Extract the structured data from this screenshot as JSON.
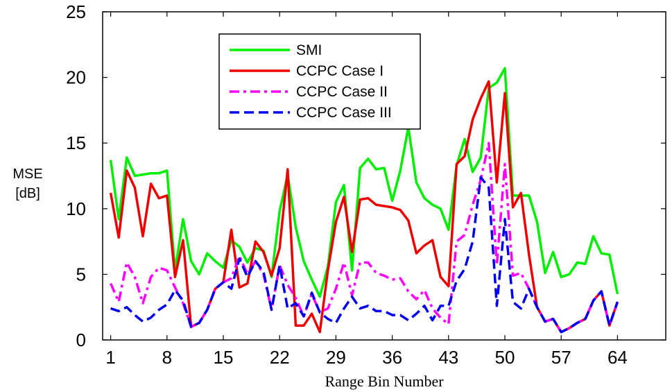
{
  "chart_data": {
    "type": "line",
    "title": "",
    "xlabel": "Range Bin Number",
    "ylabel_lines": [
      "MSE",
      "[dB]"
    ],
    "xlim": [
      0,
      70
    ],
    "ylim": [
      0,
      25
    ],
    "x_ticks": [
      1,
      8,
      15,
      22,
      29,
      36,
      43,
      50,
      57,
      64
    ],
    "y_ticks": [
      0,
      5,
      10,
      15,
      20,
      25
    ],
    "grid": false,
    "legend_position": "top-center",
    "x": [
      1,
      2,
      3,
      4,
      5,
      6,
      7,
      8,
      9,
      10,
      11,
      12,
      13,
      14,
      15,
      16,
      17,
      18,
      19,
      20,
      21,
      22,
      23,
      24,
      25,
      26,
      27,
      28,
      29,
      30,
      31,
      32,
      33,
      34,
      35,
      36,
      37,
      38,
      39,
      40,
      41,
      42,
      43,
      44,
      45,
      46,
      47,
      48,
      49,
      50,
      51,
      52,
      53,
      54,
      55,
      56,
      57,
      58,
      59,
      60,
      61,
      62,
      63,
      64
    ],
    "series": [
      {
        "name": "SMI",
        "color": "#00ee00",
        "dash": "solid",
        "values": [
          13.7,
          9.2,
          13.9,
          12.5,
          12.6,
          12.7,
          12.7,
          12.9,
          5.3,
          9.2,
          6.0,
          5.0,
          6.6,
          6.0,
          5.5,
          7.6,
          7.1,
          5.9,
          7.0,
          6.8,
          4.8,
          9.8,
          12.6,
          8.6,
          6.0,
          4.6,
          3.3,
          5.6,
          10.5,
          11.8,
          5.3,
          13.1,
          13.8,
          13.0,
          13.1,
          10.6,
          12.9,
          16.2,
          12.0,
          10.8,
          10.3,
          10.0,
          8.4,
          13.3,
          15.3,
          12.8,
          13.9,
          19.2,
          19.6,
          20.7,
          11.0,
          11.0,
          11.0,
          9.0,
          5.1,
          6.7,
          4.8,
          5.0,
          5.9,
          5.8,
          7.9,
          6.6,
          6.5,
          3.5
        ]
      },
      {
        "name": "CCPC Case I",
        "color": "#ee0000",
        "dash": "solid",
        "values": [
          11.2,
          7.8,
          12.9,
          11.6,
          7.9,
          11.9,
          10.8,
          11.0,
          4.8,
          7.6,
          1.0,
          1.3,
          2.3,
          3.9,
          4.4,
          8.4,
          4.0,
          4.3,
          7.5,
          6.7,
          4.9,
          7.0,
          13.0,
          1.1,
          1.1,
          2.0,
          0.6,
          5.3,
          9.0,
          10.9,
          6.7,
          10.7,
          10.8,
          10.3,
          10.2,
          10.1,
          9.9,
          9.1,
          6.6,
          7.2,
          7.6,
          4.8,
          4.1,
          13.4,
          14.0,
          16.8,
          18.4,
          19.7,
          12.0,
          18.8,
          10.1,
          11.2,
          6.5,
          2.5,
          1.4,
          1.6,
          0.6,
          0.9,
          1.3,
          1.6,
          3.0,
          3.7,
          1.1,
          2.9
        ]
      },
      {
        "name": "CCPC Case II",
        "color": "#ff00ff",
        "dash": "dashdot",
        "values": [
          4.3,
          2.9,
          5.9,
          4.8,
          2.8,
          4.8,
          5.5,
          5.3,
          4.0,
          2.8,
          1.0,
          1.3,
          2.3,
          3.9,
          4.4,
          4.7,
          6.4,
          5.0,
          6.0,
          5.0,
          2.3,
          5.7,
          4.2,
          3.2,
          1.8,
          3.5,
          2.1,
          2.4,
          3.9,
          5.9,
          3.4,
          5.9,
          5.9,
          5.1,
          4.9,
          4.6,
          4.7,
          3.7,
          3.1,
          3.8,
          2.4,
          1.7,
          1.2,
          7.5,
          8.0,
          10.3,
          12.2,
          15.0,
          5.7,
          13.4,
          4.9,
          5.1,
          3.9,
          2.5,
          1.4,
          1.6,
          0.6,
          0.9,
          1.3,
          1.6,
          3.0,
          3.7,
          1.1,
          2.9
        ]
      },
      {
        "name": "CCPC Case III",
        "color": "#0000ee",
        "dash": "dashed",
        "values": [
          2.4,
          2.2,
          2.5,
          1.9,
          1.4,
          1.7,
          2.3,
          2.7,
          3.8,
          3.0,
          1.0,
          1.3,
          2.3,
          3.9,
          4.4,
          3.9,
          6.2,
          4.8,
          6.0,
          5.2,
          2.3,
          5.7,
          2.4,
          2.8,
          1.8,
          3.6,
          2.1,
          1.6,
          1.3,
          2.4,
          3.3,
          2.4,
          2.6,
          2.2,
          2.2,
          1.9,
          1.9,
          1.5,
          2.0,
          2.6,
          1.5,
          2.6,
          2.6,
          4.5,
          5.4,
          7.5,
          12.4,
          11.6,
          2.6,
          9.2,
          2.9,
          2.4,
          3.9,
          2.5,
          1.4,
          1.6,
          0.6,
          0.9,
          1.3,
          1.6,
          3.0,
          3.7,
          1.1,
          2.9
        ]
      }
    ]
  }
}
